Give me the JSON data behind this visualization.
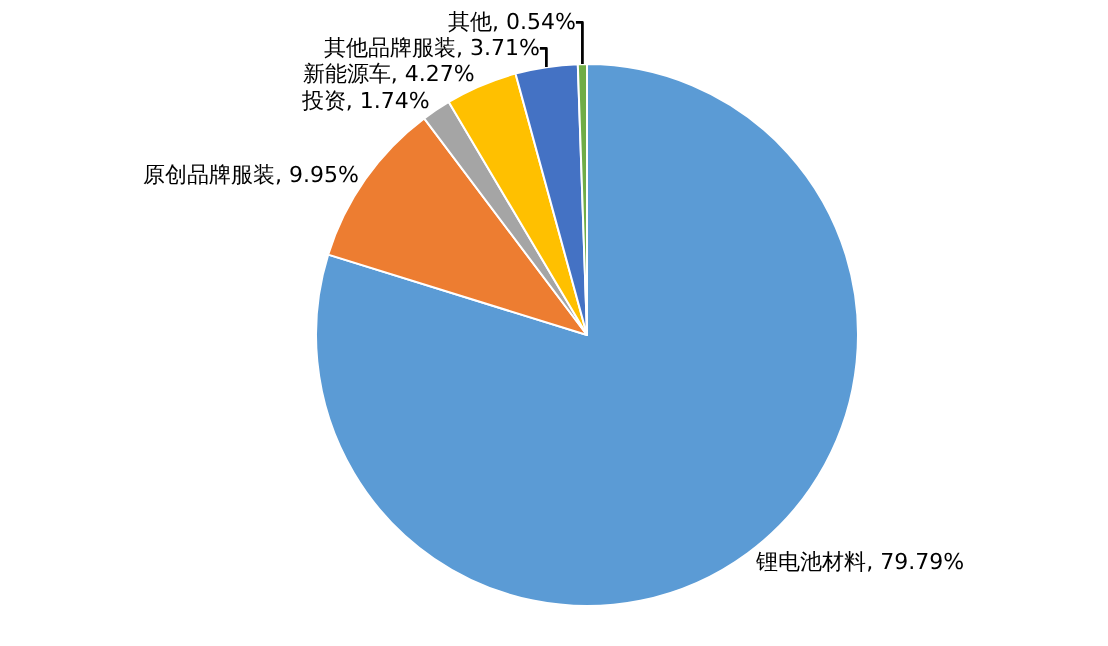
{
  "chart_data": {
    "type": "pie",
    "categories": [
      "锂电池材料",
      "原创品牌服装",
      "投资",
      "新能源车",
      "其他品牌服装",
      "其他"
    ],
    "values": [
      79.79,
      9.95,
      1.74,
      4.27,
      3.71,
      0.54
    ],
    "value_labels": [
      "79.79%",
      "9.95%",
      "1.74%",
      "4.27%",
      "3.71%",
      "0.54%"
    ],
    "colors": [
      "#5b9bd5",
      "#ed7d31",
      "#a5a5a5",
      "#ffc000",
      "#4472c4",
      "#70ad47"
    ],
    "legend": false
  }
}
